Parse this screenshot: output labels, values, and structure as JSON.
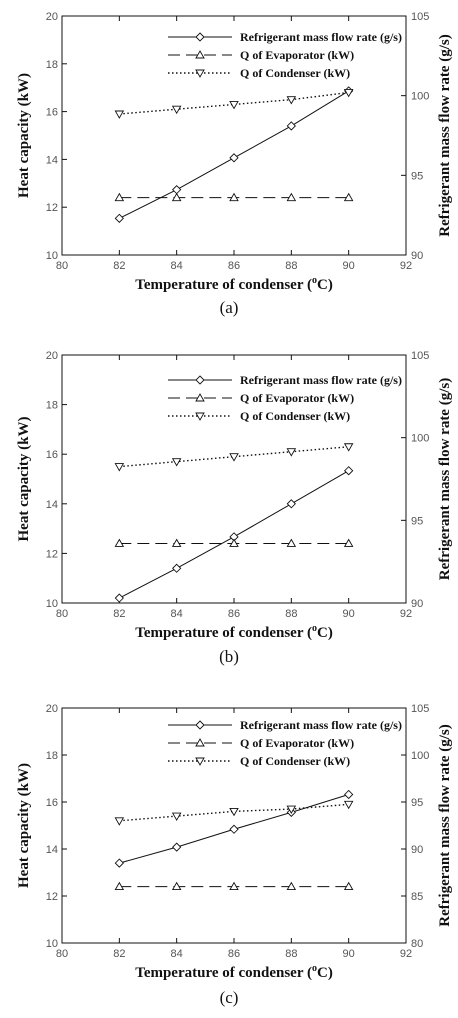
{
  "chart_data": [
    {
      "type": "line",
      "caption": "(a)",
      "xlabel": "Temperature of condenser (°C)",
      "xlabel_main": "Temperature of condenser (",
      "xlabel_unit": "C)",
      "xlabel_sup": "o",
      "ylabel": "Heat capacity (kW)",
      "y2label": "Refrigerant mass flow rate (g/s)",
      "xlim": [
        80,
        92
      ],
      "ylim": [
        10,
        20
      ],
      "y2lim": [
        90,
        105
      ],
      "xticks": [
        80,
        82,
        84,
        86,
        88,
        90,
        92
      ],
      "yticks": [
        10,
        12,
        14,
        16,
        18,
        20
      ],
      "y2ticks": [
        90,
        95,
        100,
        105
      ],
      "legend_position": "top-right",
      "x": [
        82,
        84,
        86,
        88,
        90
      ],
      "series": [
        {
          "name": "Refrigerant mass flow rate (g/s)",
          "axis": "right",
          "marker": "diamond",
          "line": "solid",
          "values": [
            92.3,
            94.1,
            96.1,
            98.1,
            100.3
          ]
        },
        {
          "name": "Q of Evaporator (kW)",
          "axis": "left",
          "marker": "triangle-up",
          "line": "dashed",
          "values": [
            12.4,
            12.4,
            12.4,
            12.4,
            12.4
          ]
        },
        {
          "name": "Q of Condenser (kW)",
          "axis": "left",
          "marker": "triangle-down",
          "line": "dotted",
          "values": [
            15.9,
            16.1,
            16.3,
            16.5,
            16.8
          ]
        }
      ]
    },
    {
      "type": "line",
      "caption": "(b)",
      "xlabel": "Temperature of condenser (°C)",
      "xlabel_main": "Temperature of condenser (",
      "xlabel_unit": "C)",
      "xlabel_sup": "o",
      "ylabel": "Heat capacity (kW)",
      "y2label": "Refrigerant mass flow rate (g/s)",
      "xlim": [
        80,
        92
      ],
      "ylim": [
        10,
        20
      ],
      "y2lim": [
        90,
        105
      ],
      "xticks": [
        80,
        82,
        84,
        86,
        88,
        90,
        92
      ],
      "yticks": [
        10,
        12,
        14,
        16,
        18,
        20
      ],
      "y2ticks": [
        90,
        95,
        100,
        105
      ],
      "legend_position": "top-right",
      "x": [
        82,
        84,
        86,
        88,
        90
      ],
      "series": [
        {
          "name": "Refrigerant mass flow rate (g/s)",
          "axis": "right",
          "marker": "diamond",
          "line": "solid",
          "values": [
            90.3,
            92.1,
            94.0,
            96.0,
            98.0
          ]
        },
        {
          "name": "Q of Evaporator (kW)",
          "axis": "left",
          "marker": "triangle-up",
          "line": "dashed",
          "values": [
            12.4,
            12.4,
            12.4,
            12.4,
            12.4
          ]
        },
        {
          "name": "Q of Condenser (kW)",
          "axis": "left",
          "marker": "triangle-down",
          "line": "dotted",
          "values": [
            15.5,
            15.7,
            15.9,
            16.1,
            16.3
          ]
        }
      ]
    },
    {
      "type": "line",
      "caption": "(c)",
      "xlabel": "Temperature of condenser (°C)",
      "xlabel_main": "Temperature of condenser (",
      "xlabel_unit": "C)",
      "xlabel_sup": "o",
      "ylabel": "Heat capacity (kW)",
      "y2label": "Refrigerant mass flow rate (g/s)",
      "xlim": [
        80,
        92
      ],
      "ylim": [
        10,
        20
      ],
      "y2lim": [
        80,
        105
      ],
      "xticks": [
        80,
        82,
        84,
        86,
        88,
        90,
        92
      ],
      "yticks": [
        10,
        12,
        14,
        16,
        18,
        20
      ],
      "y2ticks": [
        80,
        85,
        90,
        95,
        100,
        105
      ],
      "legend_position": "top-right",
      "x": [
        82,
        84,
        86,
        88,
        90
      ],
      "series": [
        {
          "name": "Refrigerant mass flow rate (g/s)",
          "axis": "right",
          "marker": "diamond",
          "line": "solid",
          "values": [
            88.5,
            90.2,
            92.1,
            93.9,
            95.8
          ]
        },
        {
          "name": "Q of Evaporator (kW)",
          "axis": "left",
          "marker": "triangle-up",
          "line": "dashed",
          "values": [
            12.4,
            12.4,
            12.4,
            12.4,
            12.4
          ]
        },
        {
          "name": "Q of Condenser (kW)",
          "axis": "left",
          "marker": "triangle-down",
          "line": "dotted",
          "values": [
            15.2,
            15.4,
            15.6,
            15.7,
            15.9
          ]
        }
      ]
    }
  ]
}
